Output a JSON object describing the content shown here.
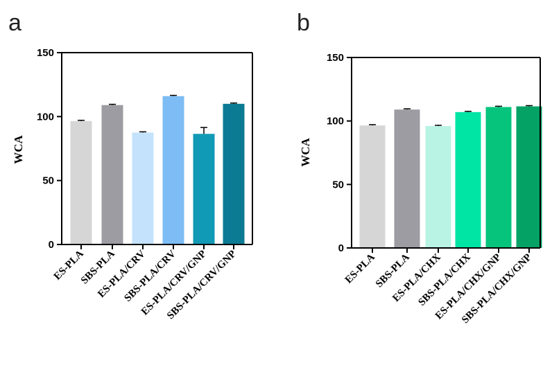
{
  "chart_data": [
    {
      "type": "bar",
      "panel_label": "a",
      "title": "",
      "xlabel": "",
      "ylabel": "WCA",
      "ylim": [
        0,
        150
      ],
      "yticks": [
        0,
        50,
        100,
        150
      ],
      "categories": [
        "ES-PLA",
        "SBS-PLA",
        "ES-PLA/CRV",
        "SBS-PLA/CRV",
        "ES-PLA/CRV/GNP",
        "SBS-PLA/CRV/GNP"
      ],
      "values": [
        96.5,
        109,
        87.5,
        116,
        86.5,
        110
      ],
      "errors": [
        0.6,
        0.6,
        0.6,
        0.6,
        5,
        0.6
      ],
      "colors": [
        "#d6d6d6",
        "#9d9ca2",
        "#c4e2fb",
        "#7dbcf4",
        "#119ab5",
        "#0b7b93"
      ]
    },
    {
      "type": "bar",
      "panel_label": "b",
      "title": "",
      "xlabel": "",
      "ylabel": "WCA",
      "ylim": [
        0,
        150
      ],
      "yticks": [
        0,
        50,
        100,
        150
      ],
      "categories": [
        "ES-PLA",
        "SBS-PLA",
        "ES-PLA/CHX",
        "SBS-PLA/CHX",
        "ES-PLA/CHX/GNP",
        "SBS-PLA/CHX/GNP"
      ],
      "values": [
        96.5,
        109,
        96,
        107,
        111,
        111.5
      ],
      "errors": [
        0.6,
        0.6,
        0.6,
        0.6,
        0.6,
        0.6
      ],
      "colors": [
        "#d6d6d6",
        "#9d9ca2",
        "#b9f3e3",
        "#00e4a4",
        "#07c47d",
        "#05a266"
      ]
    }
  ]
}
